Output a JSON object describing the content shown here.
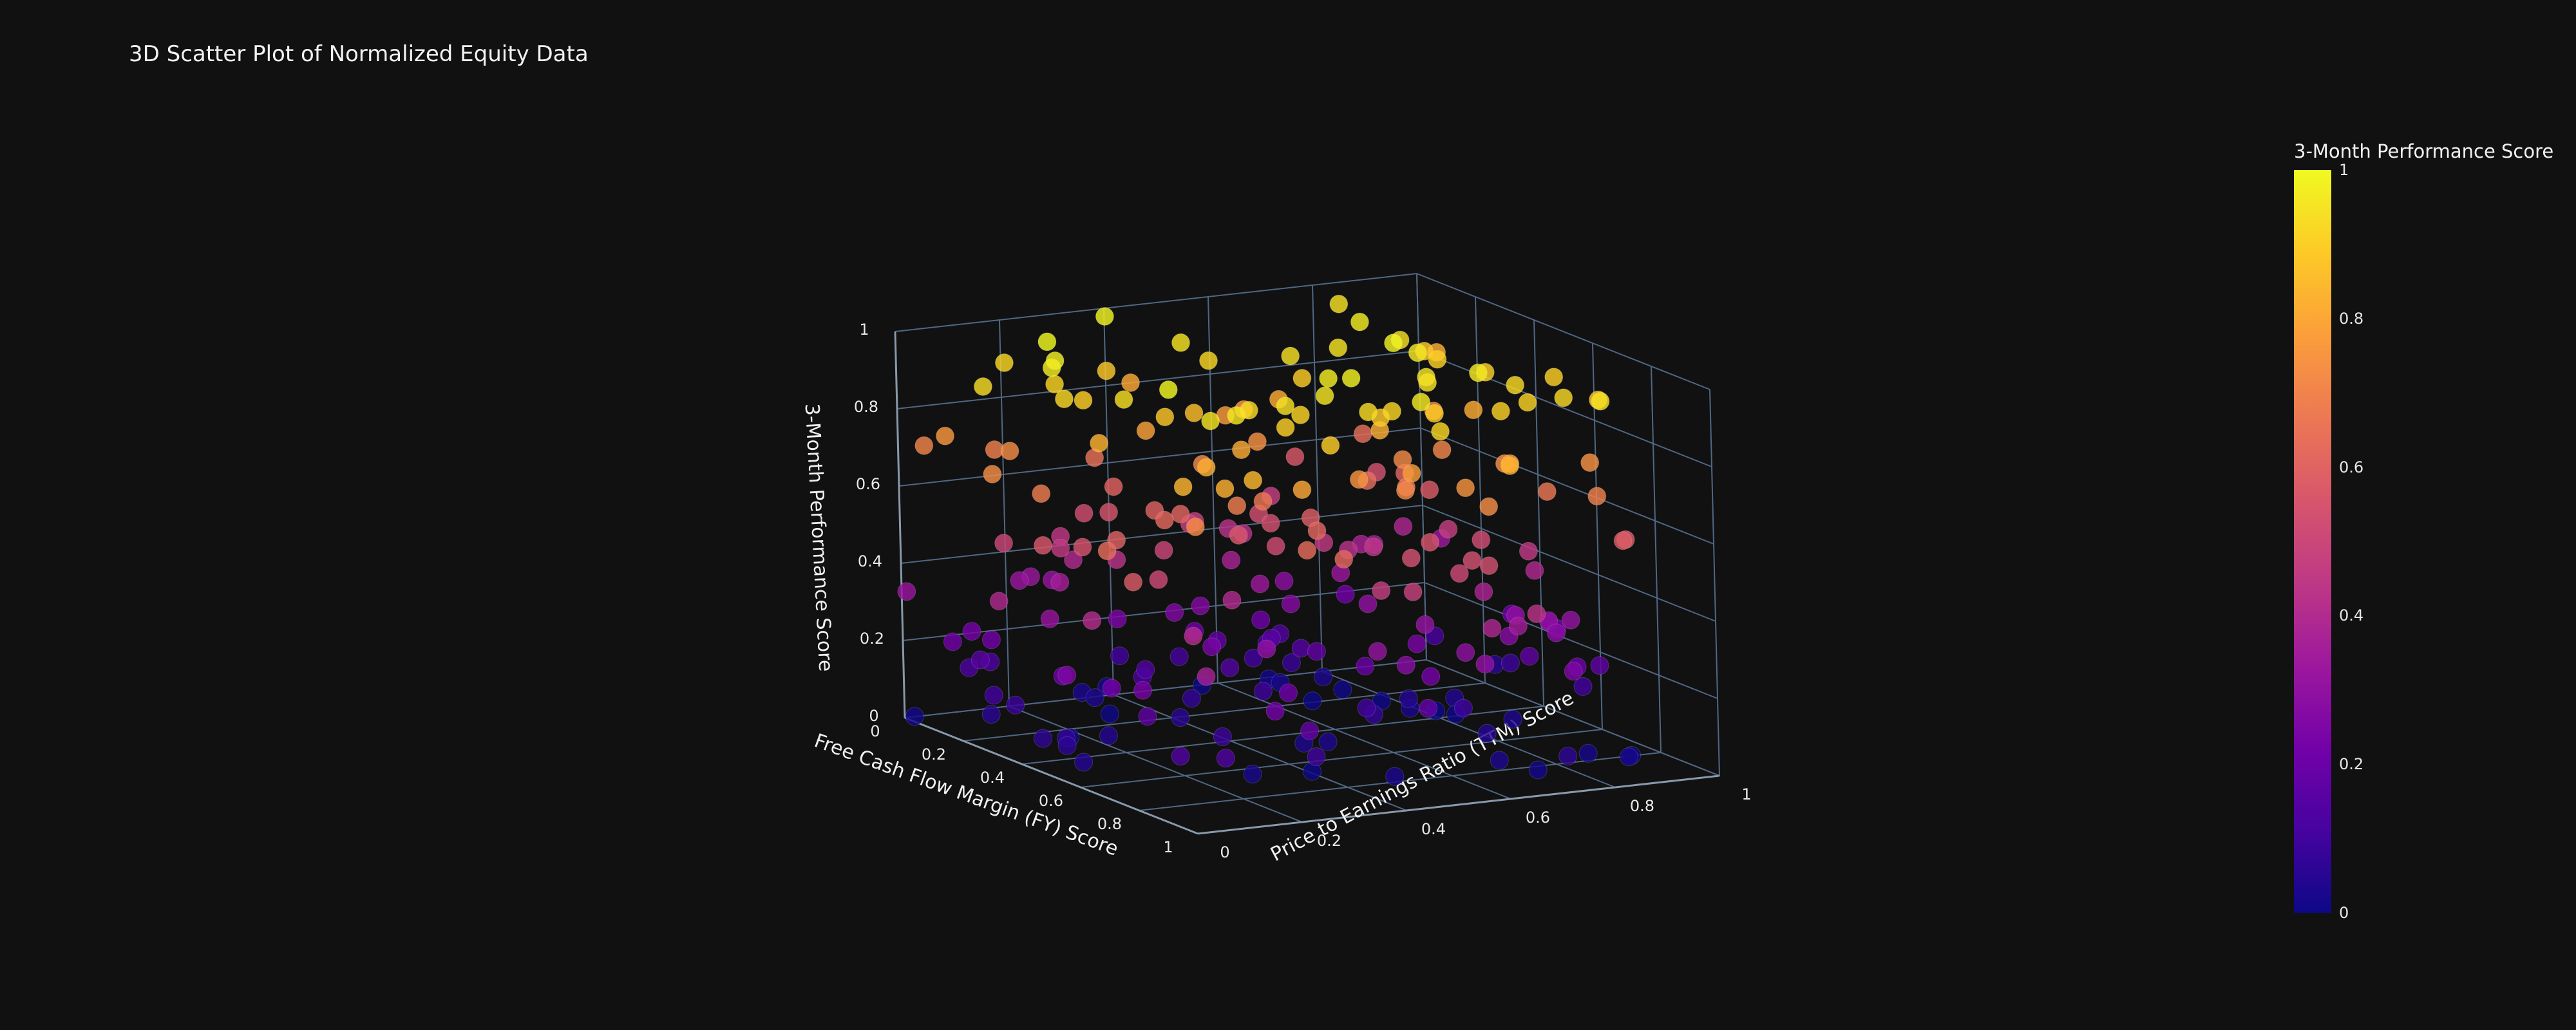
{
  "chart_data": {
    "type": "scatter",
    "title": "3D Scatter Plot of Normalized Equity Data",
    "x_axis": {
      "label": "Free Cash Flow Margin (FY) Score",
      "range": [
        0,
        1
      ],
      "ticks": [
        "0",
        "0.2",
        "0.4",
        "0.6",
        "0.8",
        "1"
      ]
    },
    "y_axis": {
      "label": "Price to Earnings Ratio (TTM) Score",
      "range": [
        0,
        1
      ],
      "ticks": [
        "0",
        "0.2",
        "0.4",
        "0.6",
        "0.8",
        "1"
      ]
    },
    "z_axis": {
      "label": "3-Month Performance Score",
      "range": [
        0,
        1
      ],
      "ticks": [
        "0",
        "0.2",
        "0.4",
        "0.6",
        "0.8",
        "1"
      ]
    },
    "colorbar": {
      "title": "3-Month Performance Score",
      "ticks": [
        "0",
        "0.2",
        "0.4",
        "0.6",
        "0.8",
        "1"
      ],
      "colorscale": [
        "#0d0887",
        "#46039f",
        "#7201a8",
        "#9c179e",
        "#bd3786",
        "#d8576b",
        "#ed7953",
        "#fb9f3a",
        "#fdca26",
        "#f0f921"
      ]
    },
    "grid": true,
    "legend": "colorbar-right",
    "point_count": 260
  }
}
